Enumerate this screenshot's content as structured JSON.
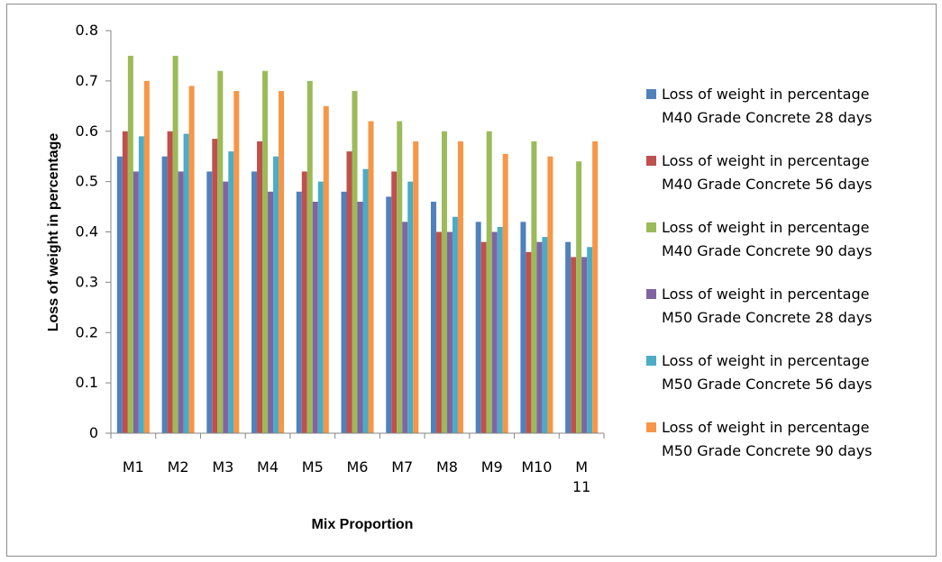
{
  "chart_data": {
    "type": "bar",
    "categories": [
      "M1",
      "M2",
      "M3",
      "M4",
      "M5",
      "M6",
      "M7",
      "M8",
      "M9",
      "M10",
      "M 11"
    ],
    "category_lines": [
      [
        "M1"
      ],
      [
        "M2"
      ],
      [
        "M3"
      ],
      [
        "M4"
      ],
      [
        "M5"
      ],
      [
        "M6"
      ],
      [
        "M7"
      ],
      [
        "M8"
      ],
      [
        "M9"
      ],
      [
        "M10"
      ],
      [
        "M",
        "11"
      ]
    ],
    "series": [
      {
        "name": "Loss of weight  in percentage M40 Grade Concrete 28 days",
        "line1": "Loss of weight  in percentage",
        "line2": "M40 Grade Concrete 28 days",
        "color": "#4f81bd",
        "values": [
          0.55,
          0.55,
          0.52,
          0.52,
          0.48,
          0.48,
          0.47,
          0.46,
          0.42,
          0.42,
          0.38
        ]
      },
      {
        "name": "Loss of weight  in percentage M40 Grade Concrete 56 days",
        "line1": "Loss of weight  in percentage",
        "line2": "M40 Grade Concrete 56 days",
        "color": "#c0504d",
        "values": [
          0.6,
          0.6,
          0.585,
          0.58,
          0.52,
          0.56,
          0.52,
          0.4,
          0.38,
          0.36,
          0.35
        ]
      },
      {
        "name": "Loss of weight  in percentage M40 Grade Concrete 90 days",
        "line1": "Loss of weight  in percentage",
        "line2": "M40 Grade Concrete 90 days",
        "color": "#9bbb59",
        "values": [
          0.75,
          0.75,
          0.72,
          0.72,
          0.7,
          0.68,
          0.62,
          0.6,
          0.6,
          0.58,
          0.54
        ]
      },
      {
        "name": "Loss of weight  in percentage M50 Grade Concrete 28 days",
        "line1": "Loss of weight  in percentage",
        "line2": "M50 Grade Concrete 28 days",
        "color": "#8064a2",
        "values": [
          0.52,
          0.52,
          0.5,
          0.48,
          0.46,
          0.46,
          0.42,
          0.4,
          0.4,
          0.38,
          0.35
        ]
      },
      {
        "name": "Loss of weight  in percentage M50 Grade Concrete 56 days",
        "line1": "Loss of weight  in percentage",
        "line2": "M50 Grade Concrete 56 days",
        "color": "#4bacc6",
        "values": [
          0.59,
          0.595,
          0.56,
          0.55,
          0.5,
          0.525,
          0.5,
          0.43,
          0.41,
          0.39,
          0.37
        ]
      },
      {
        "name": "Loss of weight  in percentage M50 Grade Concrete 90 days",
        "line1": "Loss of weight  in percentage",
        "line2": "M50 Grade Concrete 90 days",
        "color": "#f79646",
        "values": [
          0.7,
          0.69,
          0.68,
          0.68,
          0.65,
          0.62,
          0.58,
          0.58,
          0.555,
          0.55,
          0.58
        ]
      }
    ],
    "xlabel": "Mix Proportion",
    "ylabel": "Loss of weight in percentage",
    "ylim": [
      0,
      0.8
    ],
    "yticks": [
      "0",
      "0.1",
      "0.2",
      "0.3",
      "0.4",
      "0.5",
      "0.6",
      "0.7",
      "0.8"
    ],
    "grid": false,
    "legend_position": "right"
  }
}
